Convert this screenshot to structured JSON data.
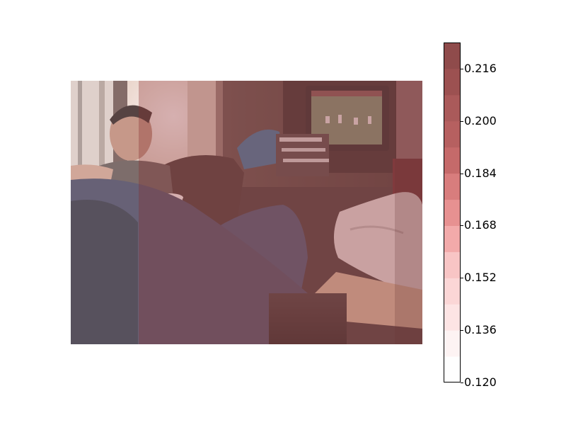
{
  "image": {
    "description_icon": "photo-living-room"
  },
  "overlay": {
    "colormap": "Reds",
    "columns": [
      {
        "value": 0.12
      },
      {
        "value": 0.154
      },
      {
        "value": 0.202
      },
      {
        "value": 0.226
      }
    ]
  },
  "colorbar": {
    "min": 0.12,
    "max": 0.224,
    "ticks": [
      "0.216",
      "0.200",
      "0.184",
      "0.168",
      "0.152",
      "0.136",
      "0.120"
    ],
    "tick_values": [
      0.216,
      0.2,
      0.184,
      0.168,
      0.152,
      0.136,
      0.12
    ],
    "band_colors": [
      "#fefefe",
      "#fdf3f3",
      "#fde4e4",
      "#fbd6d6",
      "#f8c5c5",
      "#f2aaaa",
      "#e79191",
      "#d87d7d",
      "#c56a6a",
      "#b66060",
      "#aa5a5a",
      "#9c5151",
      "#8f4b4b"
    ]
  }
}
